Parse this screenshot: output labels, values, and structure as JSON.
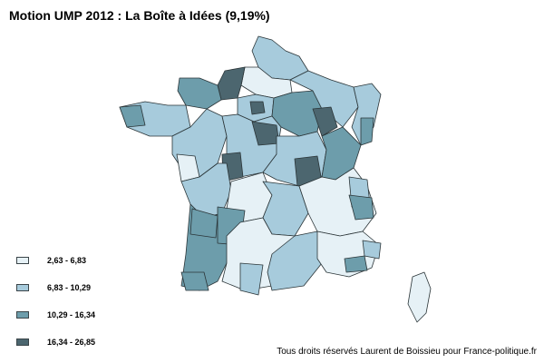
{
  "title": "Motion UMP 2012 : La Boîte à Idées (9,19%)",
  "legend": [
    {
      "label": "2,63 - 6,83",
      "color": "#e6f1f6"
    },
    {
      "label": "6,83 - 10,29",
      "color": "#a7cbdc"
    },
    {
      "label": "10,29 - 16,34",
      "color": "#6d9dab"
    },
    {
      "label": "16,34 - 26,85",
      "color": "#4c666f"
    }
  ],
  "credit": "Tous droits réservés Laurent de Boissieu pour France-politique.fr",
  "colors": {
    "border": "#2b3538",
    "background": "#ffffff"
  }
}
